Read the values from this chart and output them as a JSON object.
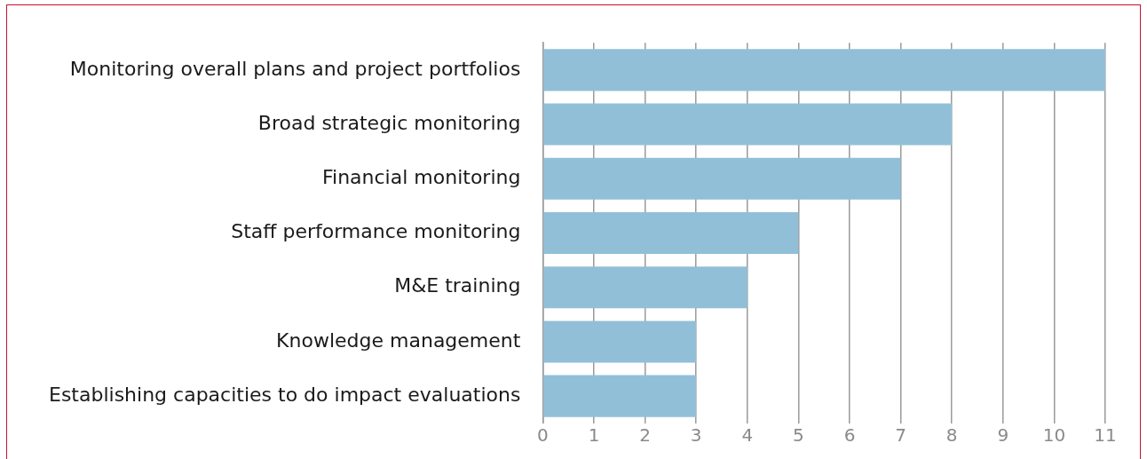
{
  "chart_data": {
    "type": "bar",
    "orientation": "horizontal",
    "categories": [
      "Monitoring overall plans and project portfolios",
      "Broad strategic monitoring",
      "Financial monitoring",
      "Staff performance monitoring",
      "M&E training",
      "Knowledge management",
      "Establishing capacities to do impact evaluations"
    ],
    "values": [
      11,
      8,
      7,
      5,
      4,
      3,
      3
    ],
    "color": "#92bfd8",
    "xlim": [
      0,
      11
    ],
    "xticks": [
      0,
      1,
      2,
      3,
      4,
      5,
      6,
      7,
      8,
      9,
      10,
      11
    ],
    "grid": "x",
    "legend": false
  }
}
